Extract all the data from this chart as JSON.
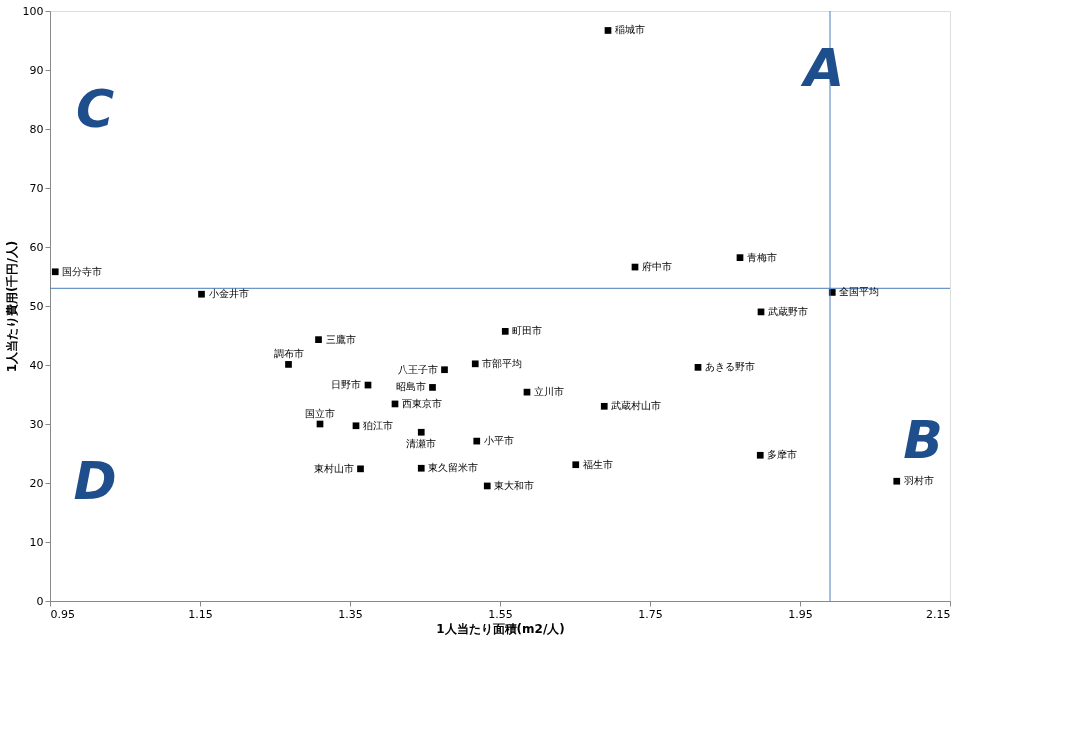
{
  "chart_data": {
    "type": "scatter",
    "xlabel": "1人当たり面積(m2/人)",
    "ylabel": "1人当たり費用(千円/人)",
    "x": [
      0.957,
      1.152,
      1.308,
      1.268,
      1.476,
      1.374,
      1.46,
      1.41,
      1.31,
      1.358,
      1.445,
      1.364,
      1.445,
      1.517,
      1.519,
      1.533,
      1.586,
      1.557,
      1.73,
      1.87,
      1.898,
      1.993,
      1.814,
      1.689,
      1.651,
      1.897,
      2.079,
      1.694
    ],
    "series": [
      {
        "color": "#000000",
        "values": [
          55.8,
          52.0,
          44.3,
          40.1,
          39.2,
          36.6,
          36.2,
          33.4,
          30.0,
          29.7,
          28.6,
          22.4,
          22.5,
          40.2,
          27.1,
          19.5,
          35.4,
          45.7,
          56.6,
          58.2,
          49.0,
          52.3,
          39.6,
          33.0,
          23.1,
          24.7,
          20.3,
          96.7
        ]
      }
    ],
    "marker": "square",
    "xlim": [
      0.95,
      2.15
    ],
    "xticks": [
      0.95,
      1.15,
      1.35,
      1.55,
      1.75,
      1.95,
      2.15
    ],
    "ylim": [
      0,
      100
    ],
    "yticks": [
      0,
      10,
      20,
      30,
      40,
      50,
      60,
      70,
      80,
      90,
      100
    ],
    "grid": false,
    "ref_lines": [
      {
        "axis": "x",
        "value": 1.99,
        "color": "#4a7ebb"
      },
      {
        "axis": "y",
        "value": 53,
        "color": "#4a7ebb"
      }
    ],
    "annotations": [
      {
        "text": "国分寺市",
        "x": 0.957,
        "y": 55.8
      },
      {
        "text": "小金井市",
        "x": 1.152,
        "y": 52.0
      },
      {
        "text": "三鷹市",
        "x": 1.308,
        "y": 44.3
      },
      {
        "text": "調布市",
        "x": 1.268,
        "y": 40.1
      },
      {
        "text": "八王子市",
        "x": 1.476,
        "y": 39.2
      },
      {
        "text": "日野市",
        "x": 1.374,
        "y": 36.6
      },
      {
        "text": "昭島市",
        "x": 1.46,
        "y": 36.2
      },
      {
        "text": "西東京市",
        "x": 1.41,
        "y": 33.4
      },
      {
        "text": "国立市",
        "x": 1.31,
        "y": 30.0
      },
      {
        "text": "狛江市",
        "x": 1.358,
        "y": 29.7
      },
      {
        "text": "清瀬市",
        "x": 1.445,
        "y": 28.6
      },
      {
        "text": "東村山市",
        "x": 1.364,
        "y": 22.4
      },
      {
        "text": "東久留米市",
        "x": 1.445,
        "y": 22.5
      },
      {
        "text": "市部平均",
        "x": 1.517,
        "y": 40.2
      },
      {
        "text": "小平市",
        "x": 1.519,
        "y": 27.1
      },
      {
        "text": "東大和市",
        "x": 1.533,
        "y": 19.5
      },
      {
        "text": "立川市",
        "x": 1.586,
        "y": 35.4
      },
      {
        "text": "町田市",
        "x": 1.557,
        "y": 45.7
      },
      {
        "text": "府中市",
        "x": 1.73,
        "y": 56.6
      },
      {
        "text": "青梅市",
        "x": 1.87,
        "y": 58.2
      },
      {
        "text": "武蔵野市",
        "x": 1.898,
        "y": 49.0
      },
      {
        "text": "全国平均",
        "x": 1.993,
        "y": 52.3
      },
      {
        "text": "あきる野市",
        "x": 1.814,
        "y": 39.6
      },
      {
        "text": "武蔵村山市",
        "x": 1.689,
        "y": 33.0
      },
      {
        "text": "福生市",
        "x": 1.651,
        "y": 23.1
      },
      {
        "text": "多摩市",
        "x": 1.897,
        "y": 24.7
      },
      {
        "text": "羽村市",
        "x": 2.079,
        "y": 20.3
      },
      {
        "text": "稲城市",
        "x": 1.694,
        "y": 96.7
      },
      "A",
      "B",
      "C",
      "D"
    ]
  }
}
